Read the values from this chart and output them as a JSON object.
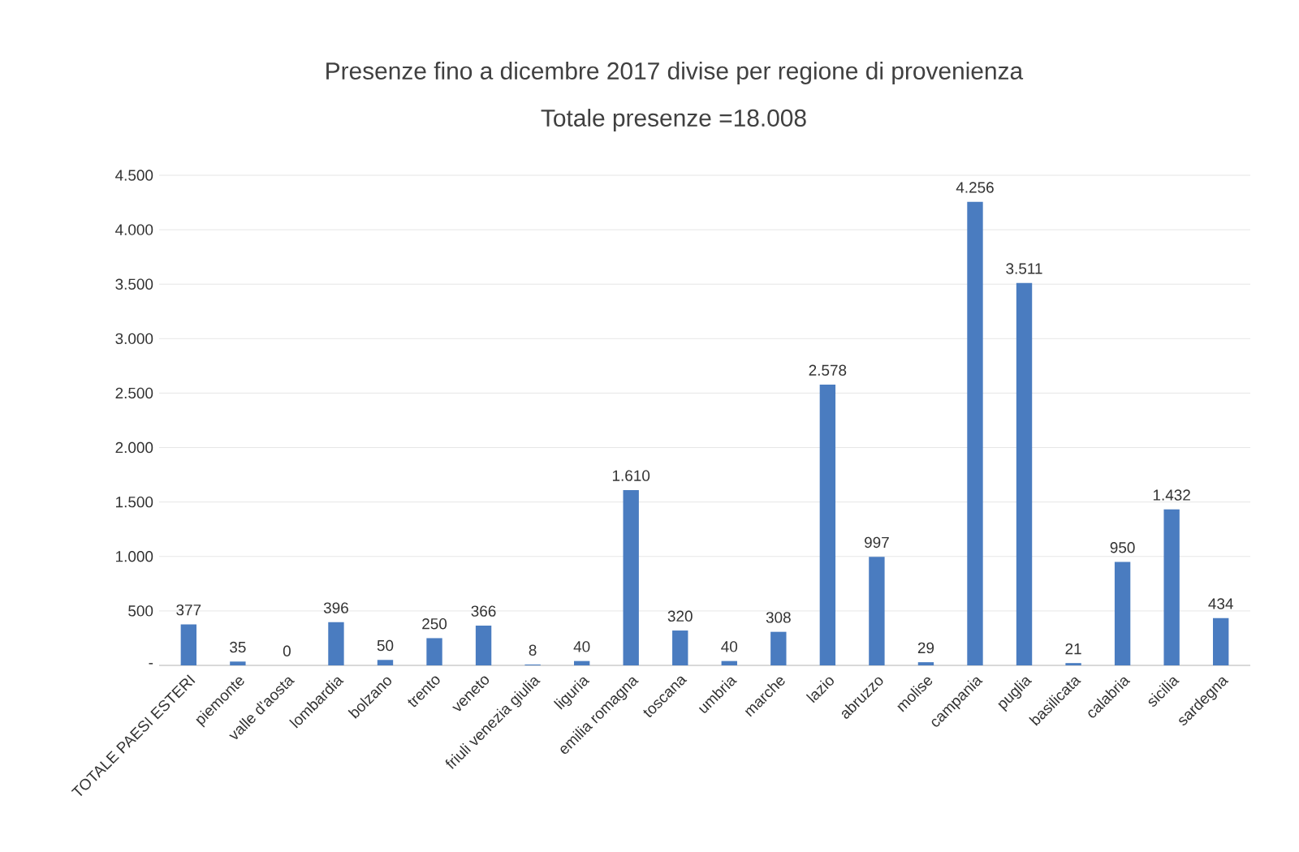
{
  "chart_data": {
    "type": "bar",
    "title": "Presenze fino a dicembre 2017 divise per regione di provenienza",
    "subtitle": "Totale presenze =18.008",
    "categories": [
      "TOTALE PAESI ESTERI",
      "piemonte",
      "valle d'aosta",
      "lombardia",
      "bolzano",
      "trento",
      "veneto",
      "friuli venezia giulia",
      "liguria",
      "emilia romagna",
      "toscana",
      "umbria",
      "marche",
      "lazio",
      "abruzzo",
      "molise",
      "campania",
      "puglia",
      "basilicata",
      "calabria",
      "sicilia",
      "sardegna"
    ],
    "values": [
      377,
      35,
      0,
      396,
      50,
      250,
      366,
      8,
      40,
      1610,
      320,
      40,
      308,
      2578,
      997,
      29,
      4256,
      3511,
      21,
      950,
      1432,
      434
    ],
    "value_labels": [
      "377",
      "35",
      "0",
      "396",
      "50",
      "250",
      "366",
      "8",
      "40",
      "1.610",
      "320",
      "40",
      "308",
      "2.578",
      "997",
      "29",
      "4.256",
      "3.511",
      "21",
      "950",
      "1.432",
      "434"
    ],
    "color": "#4a7cc0",
    "ylim": [
      0,
      4500
    ],
    "yticks": [
      {
        "value": 0,
        "label": "-"
      },
      500,
      {
        "value": 1000,
        "label": "1.000"
      },
      {
        "value": 1500,
        "label": "1.500"
      },
      {
        "value": 2000,
        "label": "2.000"
      },
      {
        "value": 2500,
        "label": "2.500"
      },
      {
        "value": 3000,
        "label": "3.000"
      },
      {
        "value": 3500,
        "label": "3.500"
      },
      {
        "value": 4000,
        "label": "4.000"
      },
      {
        "value": 4500,
        "label": "4.500"
      }
    ],
    "grid": "y"
  }
}
